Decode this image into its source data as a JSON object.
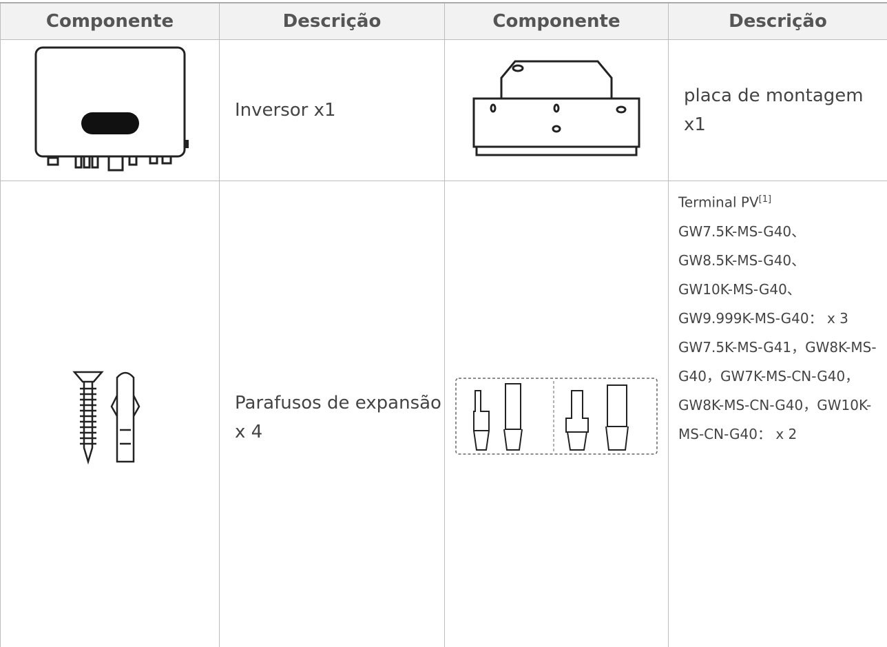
{
  "table": {
    "header": [
      "Componente",
      "Descrição",
      "Componente",
      "Descrição"
    ],
    "rows": [
      {
        "description_1": "Inversor x1",
        "description_2": "placa de montagem x1"
      },
      {
        "description_1": "Parafusos de expansão x 4",
        "description_2": {
          "title": "Terminal PV",
          "note": "[1]",
          "lines": [
            "GW7.5K-MS-G40、",
            "GW8.5K-MS-G40、",
            "GW10K-MS-G40、",
            "GW9.999K-MS-G40： x 3",
            "GW7.5K-MS-G41，GW8K-MS-G40，GW7K-MS-CN-G40，GW8K-MS-CN-G40，GW10K-MS-CN-G40： x 2"
          ]
        }
      }
    ]
  }
}
